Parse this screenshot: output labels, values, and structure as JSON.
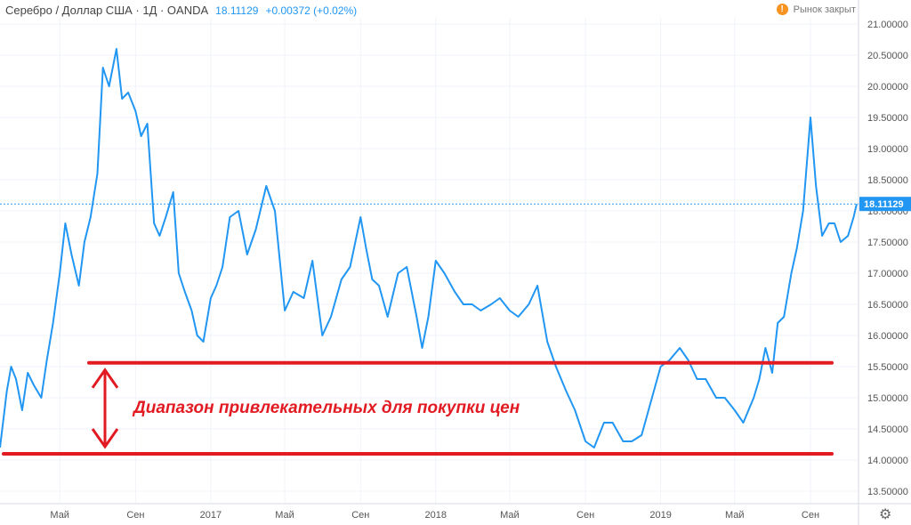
{
  "header": {
    "symbol": "Серебро / Доллар США · 1Д · OANDA",
    "price": "18.11129",
    "change": "+0.00372 (+0.02%)"
  },
  "status": {
    "icon": "!",
    "text": "Рынок закрыт"
  },
  "annotation": "Диапазон привлекательных для покупки цен",
  "settings_icon": "gear-icon",
  "colors": {
    "series": "#2196f3",
    "support": "#e21b22",
    "grid": "#f0f3fa",
    "axis_text": "#555555"
  },
  "chart_data": {
    "type": "line",
    "symbol": "Серебро / Доллар США",
    "y_ticks": [
      "13.50000",
      "14.00000",
      "14.50000",
      "15.00000",
      "15.50000",
      "16.00000",
      "16.50000",
      "17.00000",
      "17.50000",
      "18.00000",
      "18.50000",
      "19.00000",
      "19.50000",
      "20.00000",
      "20.50000",
      "21.00000"
    ],
    "ylim": [
      13.3,
      21.1
    ],
    "x_ticks": [
      {
        "label": "Май",
        "date": "2016-05-01"
      },
      {
        "label": "Сен",
        "date": "2016-09-01"
      },
      {
        "label": "2017",
        "date": "2017-01-01"
      },
      {
        "label": "Май",
        "date": "2017-05-01"
      },
      {
        "label": "Сен",
        "date": "2017-09-01"
      },
      {
        "label": "2018",
        "date": "2018-01-01"
      },
      {
        "label": "Май",
        "date": "2018-05-01"
      },
      {
        "label": "Сен",
        "date": "2018-09-01"
      },
      {
        "label": "2019",
        "date": "2019-01-01"
      },
      {
        "label": "Май",
        "date": "2019-05-01"
      },
      {
        "label": "Сен",
        "date": "2019-09-01"
      }
    ],
    "xlim": [
      "2016-01-25",
      "2019-11-18"
    ],
    "last_price": "18.11129",
    "series": [
      {
        "x": [
          "2016-01-25",
          "2016-02-05",
          "2016-02-12",
          "2016-02-20",
          "2016-03-01",
          "2016-03-10",
          "2016-03-20",
          "2016-04-01",
          "2016-04-10",
          "2016-04-20",
          "2016-05-01",
          "2016-05-10",
          "2016-05-20",
          "2016-06-01",
          "2016-06-10",
          "2016-06-20",
          "2016-07-01",
          "2016-07-10",
          "2016-07-20",
          "2016-08-01",
          "2016-08-10",
          "2016-08-20",
          "2016-09-01",
          "2016-09-10",
          "2016-09-20",
          "2016-10-01",
          "2016-10-10",
          "2016-10-20",
          "2016-11-01",
          "2016-11-10",
          "2016-11-20",
          "2016-12-01",
          "2016-12-10",
          "2016-12-20",
          "2017-01-01",
          "2017-01-10",
          "2017-01-20",
          "2017-02-01",
          "2017-02-15",
          "2017-03-01",
          "2017-03-15",
          "2017-04-01",
          "2017-04-15",
          "2017-05-01",
          "2017-05-15",
          "2017-06-01",
          "2017-06-15",
          "2017-07-01",
          "2017-07-15",
          "2017-08-01",
          "2017-08-15",
          "2017-09-01",
          "2017-09-10",
          "2017-09-20",
          "2017-10-01",
          "2017-10-15",
          "2017-11-01",
          "2017-11-15",
          "2017-12-01",
          "2017-12-10",
          "2017-12-20",
          "2018-01-01",
          "2018-01-15",
          "2018-02-01",
          "2018-02-15",
          "2018-03-01",
          "2018-03-15",
          "2018-04-01",
          "2018-04-15",
          "2018-05-01",
          "2018-05-15",
          "2018-06-01",
          "2018-06-15",
          "2018-07-01",
          "2018-07-15",
          "2018-08-01",
          "2018-08-15",
          "2018-09-01",
          "2018-09-15",
          "2018-10-01",
          "2018-10-15",
          "2018-11-01",
          "2018-11-15",
          "2018-12-01",
          "2018-12-15",
          "2019-01-01",
          "2019-01-15",
          "2019-02-01",
          "2019-02-15",
          "2019-03-01",
          "2019-03-15",
          "2019-04-01",
          "2019-04-15",
          "2019-05-01",
          "2019-05-15",
          "2019-06-01",
          "2019-06-10",
          "2019-06-20",
          "2019-07-01",
          "2019-07-10",
          "2019-07-20",
          "2019-08-01",
          "2019-08-10",
          "2019-08-20",
          "2019-09-01",
          "2019-09-10",
          "2019-09-20",
          "2019-10-01",
          "2019-10-10",
          "2019-10-20",
          "2019-11-01",
          "2019-11-10",
          "2019-11-15"
        ],
        "y": [
          14.2,
          15.1,
          15.5,
          15.3,
          14.8,
          15.4,
          15.2,
          15.0,
          15.6,
          16.2,
          17.0,
          17.8,
          17.3,
          16.8,
          17.5,
          17.9,
          18.6,
          20.3,
          20.0,
          20.6,
          19.8,
          19.9,
          19.6,
          19.2,
          19.4,
          17.8,
          17.6,
          17.9,
          18.3,
          17.0,
          16.7,
          16.4,
          16.0,
          15.9,
          16.6,
          16.8,
          17.1,
          17.9,
          18.0,
          17.3,
          17.7,
          18.4,
          18.0,
          16.4,
          16.7,
          16.6,
          17.2,
          16.0,
          16.3,
          16.9,
          17.1,
          17.9,
          17.4,
          16.9,
          16.8,
          16.3,
          17.0,
          17.1,
          16.3,
          15.8,
          16.3,
          17.2,
          17.0,
          16.7,
          16.5,
          16.5,
          16.4,
          16.5,
          16.6,
          16.4,
          16.3,
          16.5,
          16.8,
          15.9,
          15.5,
          15.1,
          14.8,
          14.3,
          14.2,
          14.6,
          14.6,
          14.3,
          14.3,
          14.4,
          14.9,
          15.5,
          15.6,
          15.8,
          15.6,
          15.3,
          15.3,
          15.0,
          15.0,
          14.8,
          14.6,
          15.0,
          15.3,
          15.8,
          15.4,
          16.2,
          16.3,
          17.0,
          17.4,
          18.0,
          19.5,
          18.4,
          17.6,
          17.8,
          17.8,
          17.5,
          17.6,
          17.9,
          18.11
        ]
      }
    ],
    "support_lines": [
      15.56,
      14.1
    ]
  }
}
